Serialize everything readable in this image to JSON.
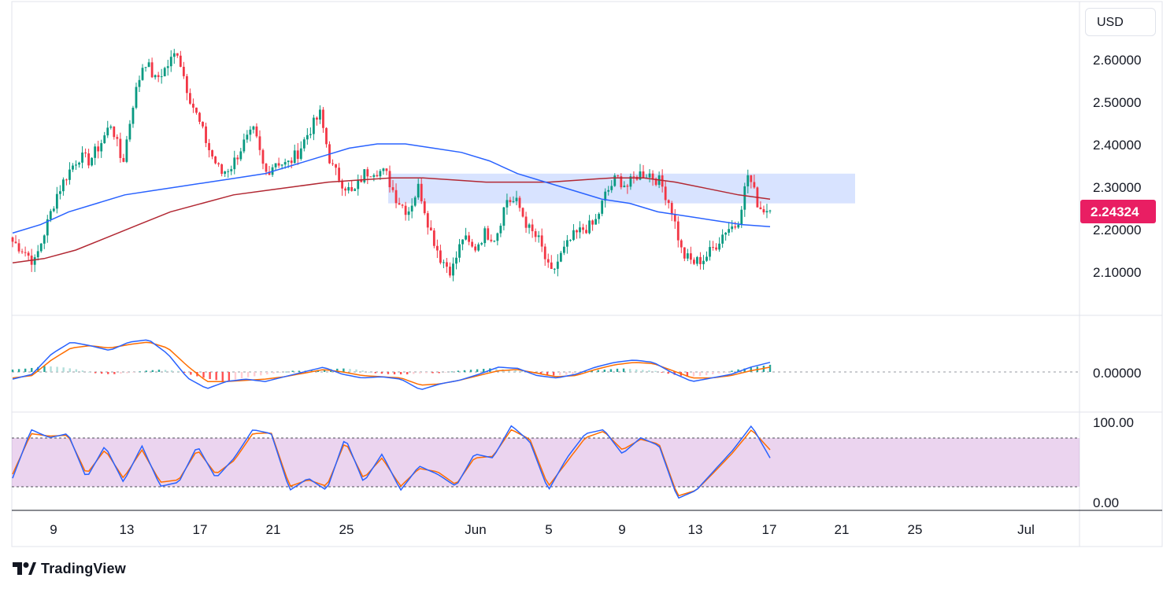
{
  "currency_button": "USD",
  "brand": {
    "name": "TradingView"
  },
  "colors": {
    "up": "#089981",
    "down": "#f23645",
    "ma_fast": "#2962ff",
    "ma_slow": "#b22833",
    "zone": "rgba(41,98,255,0.18)",
    "badge": "#e91e63",
    "macd_line": "#2962ff",
    "signal_line": "#ff6d00",
    "stoch_band": "rgba(156,39,176,0.2)"
  },
  "price_axis": {
    "ticks": [
      "2.60000",
      "2.50000",
      "2.40000",
      "2.30000",
      "2.20000",
      "2.10000"
    ]
  },
  "current_price": "2.24324",
  "macd_axis": {
    "ticks": [
      "0.00000"
    ]
  },
  "stoch_axis": {
    "ticks": [
      "100.00",
      "0.00"
    ]
  },
  "time_axis": {
    "labels": [
      "9",
      "13",
      "17",
      "21",
      "25",
      "Jun",
      "5",
      "9",
      "13",
      "17",
      "21",
      "25",
      "Jul"
    ]
  },
  "chart_data": [
    {
      "type": "candlestick",
      "x_axis": {
        "labels": [
          "9",
          "13",
          "17",
          "21",
          "25",
          "Jun",
          "5",
          "9",
          "13",
          "17",
          "21",
          "25",
          "Jul"
        ]
      },
      "y_axis": {
        "ticks": [
          2.1,
          2.2,
          2.3,
          2.4,
          2.5,
          2.6
        ],
        "range": [
          2.04,
          2.72
        ]
      },
      "current_value": 2.24324,
      "resistance_zone": [
        2.26,
        2.33
      ],
      "price_path": [
        2.17,
        2.15,
        2.12,
        2.2,
        2.28,
        2.33,
        2.37,
        2.36,
        2.4,
        2.45,
        2.35,
        2.5,
        2.6,
        2.55,
        2.58,
        2.62,
        2.52,
        2.45,
        2.38,
        2.33,
        2.35,
        2.4,
        2.43,
        2.33,
        2.36,
        2.35,
        2.38,
        2.43,
        2.47,
        2.35,
        2.31,
        2.28,
        2.33,
        2.34,
        2.33,
        2.27,
        2.24,
        2.3,
        2.2,
        2.13,
        2.1,
        2.18,
        2.15,
        2.19,
        2.18,
        2.27,
        2.26,
        2.2,
        2.17,
        2.09,
        2.14,
        2.18,
        2.2,
        2.21,
        2.28,
        2.32,
        2.3,
        2.33,
        2.33,
        2.31,
        2.25,
        2.14,
        2.12,
        2.13,
        2.16,
        2.2,
        2.21,
        2.33,
        2.25,
        2.24324
      ],
      "ma_fast": [
        2.19,
        2.21,
        2.24,
        2.26,
        2.28,
        2.29,
        2.3,
        2.31,
        2.32,
        2.33,
        2.35,
        2.37,
        2.39,
        2.4,
        2.4,
        2.39,
        2.38,
        2.36,
        2.33,
        2.31,
        2.29,
        2.27,
        2.26,
        2.24,
        2.23,
        2.22,
        2.21,
        2.205
      ],
      "ma_slow": [
        2.12,
        2.13,
        2.15,
        2.18,
        2.21,
        2.24,
        2.26,
        2.28,
        2.29,
        2.3,
        2.31,
        2.315,
        2.32,
        2.32,
        2.315,
        2.31,
        2.31,
        2.31,
        2.315,
        2.32,
        2.32,
        2.31,
        2.295,
        2.28,
        2.27
      ]
    },
    {
      "type": "bar+line",
      "name": "MACD",
      "y_axis": {
        "ticks": [
          0.0
        ]
      },
      "histogram": [
        0.004,
        0.006,
        0.01,
        0.008,
        0.004,
        -0.002,
        -0.004,
        -0.002,
        0.002,
        0.004,
        0.002,
        -0.006,
        -0.012,
        -0.016,
        -0.01,
        -0.006,
        -0.002,
        0.002,
        0.002,
        0.004,
        0.006,
        0.004,
        -0.002,
        -0.004,
        -0.004,
        -0.002,
        -0.002,
        0.002,
        0.004,
        0.006,
        0.004,
        0.002,
        -0.004,
        -0.006,
        -0.004,
        0.002,
        0.004,
        0.006,
        0.004,
        0.002,
        -0.004,
        -0.008,
        -0.006,
        -0.002,
        0.004,
        0.008,
        0.012
      ],
      "macd": [
        -0.012,
        -0.004,
        0.03,
        0.05,
        0.044,
        0.036,
        0.05,
        0.054,
        0.03,
        -0.01,
        -0.028,
        -0.016,
        -0.012,
        -0.016,
        -0.008,
        0.0,
        0.008,
        -0.004,
        -0.01,
        -0.008,
        -0.012,
        -0.03,
        -0.02,
        -0.014,
        -0.004,
        0.008,
        0.006,
        -0.006,
        -0.01,
        -0.004,
        0.008,
        0.016,
        0.02,
        0.016,
        -0.002,
        -0.016,
        -0.01,
        -0.004,
        0.008,
        0.016
      ],
      "signal": [
        -0.01,
        -0.006,
        0.02,
        0.04,
        0.044,
        0.04,
        0.046,
        0.05,
        0.04,
        0.01,
        -0.016,
        -0.016,
        -0.014,
        -0.012,
        -0.008,
        -0.002,
        0.004,
        0.0,
        -0.006,
        -0.008,
        -0.01,
        -0.022,
        -0.02,
        -0.014,
        -0.006,
        0.002,
        0.004,
        -0.002,
        -0.008,
        -0.006,
        0.004,
        0.012,
        0.016,
        0.014,
        0.002,
        -0.01,
        -0.01,
        -0.006,
        0.002,
        0.008
      ]
    },
    {
      "type": "line",
      "name": "Stochastic",
      "y_axis": {
        "ticks": [
          0,
          100
        ],
        "range": [
          0,
          100
        ]
      },
      "band": [
        20,
        80
      ],
      "k": [
        30,
        90,
        80,
        85,
        30,
        70,
        25,
        70,
        20,
        25,
        70,
        30,
        55,
        90,
        85,
        15,
        30,
        15,
        80,
        25,
        60,
        15,
        45,
        35,
        20,
        60,
        55,
        95,
        75,
        15,
        55,
        85,
        90,
        60,
        80,
        70,
        5,
        15,
        40,
        65,
        95,
        55
      ],
      "d": [
        35,
        85,
        82,
        83,
        35,
        65,
        30,
        65,
        25,
        28,
        65,
        35,
        52,
        85,
        86,
        20,
        28,
        20,
        75,
        30,
        55,
        20,
        42,
        38,
        22,
        55,
        57,
        90,
        78,
        20,
        50,
        80,
        88,
        65,
        78,
        72,
        8,
        15,
        38,
        62,
        90,
        65
      ]
    }
  ]
}
